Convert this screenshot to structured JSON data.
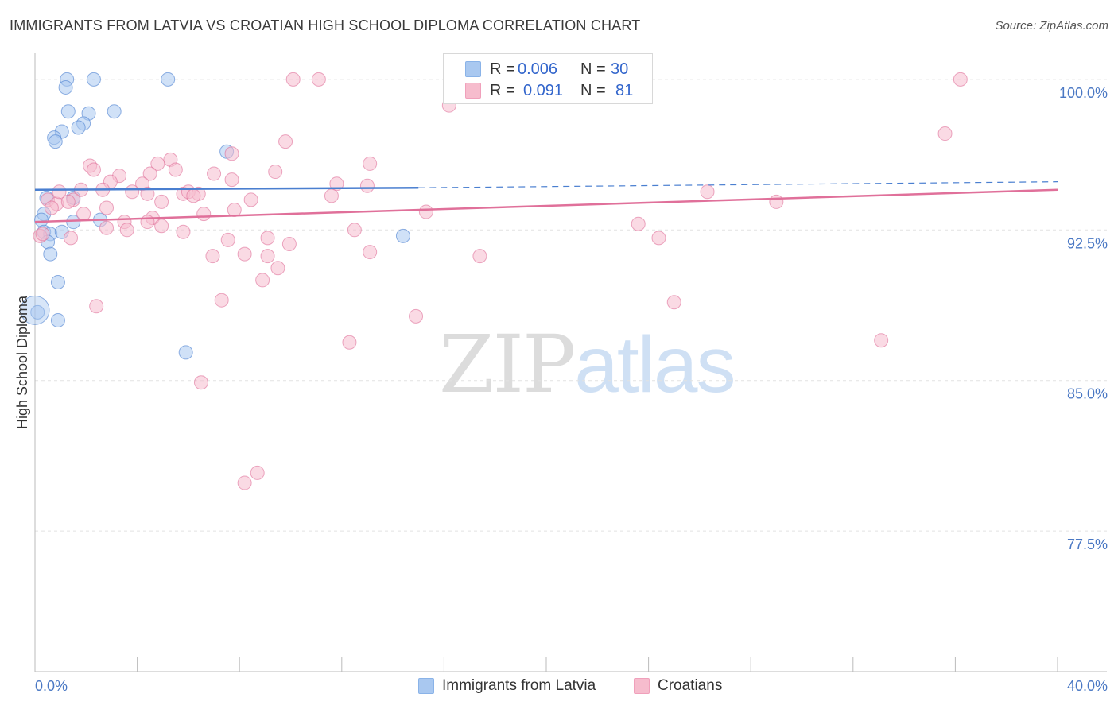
{
  "title": "IMMIGRANTS FROM LATVIA VS CROATIAN HIGH SCHOOL DIPLOMA CORRELATION CHART",
  "source": "Source: ZipAtlas.com",
  "watermark": {
    "zip": "ZIP",
    "atlas": "atlas"
  },
  "legend": {
    "r_label": "R =",
    "n_label": "N =",
    "rows": [
      {
        "r": "0.006",
        "n": "30",
        "color": "#8ab3e8"
      },
      {
        "r": "0.091",
        "n": "81",
        "color": "#f0a0bb"
      }
    ]
  },
  "bottom_legend": [
    {
      "label": "Immigrants from Latvia",
      "color": "#8ab3e8"
    },
    {
      "label": "Croatians",
      "color": "#f0a0bb"
    }
  ],
  "chart_data": {
    "type": "scatter",
    "title": "IMMIGRANTS FROM LATVIA VS CROATIAN HIGH SCHOOL DIPLOMA CORRELATION CHART",
    "xlabel": "",
    "ylabel": "High School Diploma",
    "xlim": [
      0,
      40
    ],
    "ylim": [
      70.5,
      101.3
    ],
    "x_tick_labels": [
      "0.0%",
      "40.0%"
    ],
    "y_ticks": [
      {
        "value": 100,
        "label": "100.0%"
      },
      {
        "value": 92.5,
        "label": "92.5%"
      },
      {
        "value": 85,
        "label": "85.0%"
      },
      {
        "value": 77.5,
        "label": "77.5%"
      }
    ],
    "grid": true,
    "series": [
      {
        "name": "Immigrants from Latvia",
        "color": "#4a7fd0",
        "fill": "#a9c8f0",
        "trend": {
          "x0": 0,
          "y0": 94.5,
          "x1": 15,
          "y1": 94.6,
          "dash_to": 40,
          "dash_y": 94.9
        },
        "points": [
          [
            1.25,
            100.0
          ],
          [
            2.3,
            100.0
          ],
          [
            5.2,
            100.0
          ],
          [
            1.2,
            99.6
          ],
          [
            1.3,
            98.4
          ],
          [
            2.1,
            98.3
          ],
          [
            3.1,
            98.4
          ],
          [
            1.9,
            97.8
          ],
          [
            1.7,
            97.6
          ],
          [
            1.05,
            97.4
          ],
          [
            0.75,
            97.1
          ],
          [
            0.8,
            96.9
          ],
          [
            7.5,
            96.4
          ],
          [
            0.45,
            94.1
          ],
          [
            1.5,
            94.1
          ],
          [
            0.35,
            93.3
          ],
          [
            0.25,
            93.0
          ],
          [
            1.5,
            92.9
          ],
          [
            2.55,
            93.0
          ],
          [
            0.35,
            92.4
          ],
          [
            0.6,
            92.3
          ],
          [
            1.05,
            92.4
          ],
          [
            0.5,
            91.9
          ],
          [
            0.6,
            91.3
          ],
          [
            0.9,
            89.9
          ],
          [
            0.1,
            88.4
          ],
          [
            0.9,
            88.0
          ],
          [
            14.4,
            92.2
          ],
          [
            5.9,
            86.4
          ],
          [
            0.0,
            88.5
          ]
        ]
      },
      {
        "name": "Croatians",
        "color": "#e0709a",
        "fill": "#f6bccd",
        "trend": {
          "x0": 0,
          "y0": 92.9,
          "x1": 40,
          "y1": 94.5
        },
        "points": [
          [
            10.1,
            100.0
          ],
          [
            11.1,
            100.0
          ],
          [
            17.7,
            100.0
          ],
          [
            22.7,
            100.0
          ],
          [
            36.2,
            100.0
          ],
          [
            35.6,
            97.3
          ],
          [
            9.8,
            96.9
          ],
          [
            7.7,
            96.3
          ],
          [
            5.3,
            96.0
          ],
          [
            4.8,
            95.8
          ],
          [
            2.15,
            95.7
          ],
          [
            2.3,
            95.5
          ],
          [
            5.5,
            95.5
          ],
          [
            13.1,
            95.8
          ],
          [
            9.4,
            95.4
          ],
          [
            7.0,
            95.3
          ],
          [
            3.3,
            95.2
          ],
          [
            4.5,
            95.3
          ],
          [
            7.7,
            95.0
          ],
          [
            2.95,
            94.9
          ],
          [
            4.2,
            94.8
          ],
          [
            11.8,
            94.8
          ],
          [
            13.0,
            94.7
          ],
          [
            1.8,
            94.5
          ],
          [
            2.65,
            94.5
          ],
          [
            3.8,
            94.4
          ],
          [
            5.8,
            94.3
          ],
          [
            6.0,
            94.4
          ],
          [
            6.4,
            94.3
          ],
          [
            4.4,
            94.3
          ],
          [
            6.2,
            94.2
          ],
          [
            11.6,
            94.2
          ],
          [
            26.3,
            94.4
          ],
          [
            0.5,
            94.0
          ],
          [
            1.5,
            94.0
          ],
          [
            0.85,
            93.8
          ],
          [
            1.3,
            93.9
          ],
          [
            4.95,
            93.9
          ],
          [
            8.45,
            94.0
          ],
          [
            29.0,
            93.9
          ],
          [
            0.65,
            93.6
          ],
          [
            2.8,
            93.6
          ],
          [
            7.8,
            93.5
          ],
          [
            1.9,
            93.3
          ],
          [
            6.6,
            93.3
          ],
          [
            15.3,
            93.4
          ],
          [
            4.6,
            93.1
          ],
          [
            3.5,
            92.9
          ],
          [
            4.4,
            92.9
          ],
          [
            4.95,
            92.7
          ],
          [
            2.8,
            92.6
          ],
          [
            3.6,
            92.5
          ],
          [
            5.8,
            92.4
          ],
          [
            12.5,
            92.5
          ],
          [
            23.6,
            92.8
          ],
          [
            0.2,
            92.2
          ],
          [
            1.4,
            92.1
          ],
          [
            7.55,
            92.0
          ],
          [
            9.1,
            92.1
          ],
          [
            9.95,
            91.8
          ],
          [
            24.4,
            92.1
          ],
          [
            6.95,
            91.2
          ],
          [
            8.2,
            91.3
          ],
          [
            9.1,
            91.2
          ],
          [
            13.1,
            91.4
          ],
          [
            17.4,
            91.2
          ],
          [
            9.5,
            90.6
          ],
          [
            8.9,
            90.0
          ],
          [
            7.3,
            89.0
          ],
          [
            25.0,
            88.9
          ],
          [
            2.4,
            88.7
          ],
          [
            14.9,
            88.2
          ],
          [
            12.3,
            86.9
          ],
          [
            33.1,
            87.0
          ],
          [
            6.5,
            84.9
          ],
          [
            8.7,
            80.4
          ],
          [
            8.2,
            79.9
          ],
          [
            0.3,
            92.3
          ],
          [
            0.95,
            94.4
          ],
          [
            16.2,
            98.7
          ],
          [
            18.0,
            99.7
          ]
        ]
      }
    ]
  }
}
